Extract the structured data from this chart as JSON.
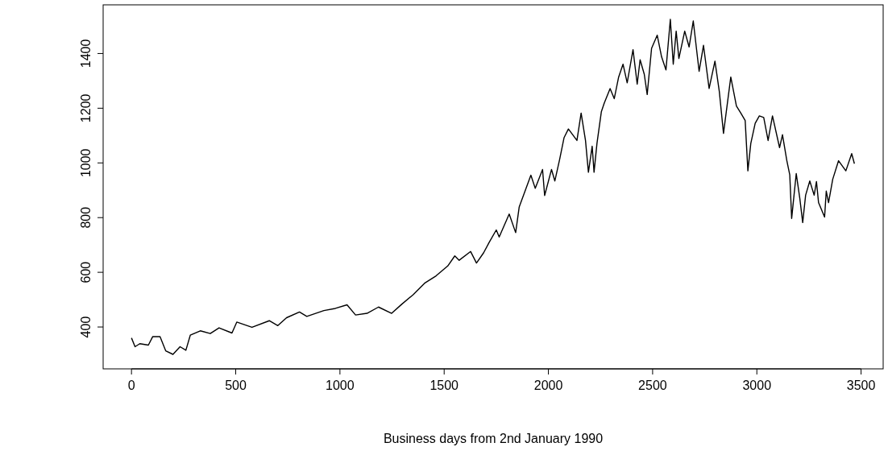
{
  "chart_data": {
    "type": "line",
    "xlabel": "Business days from 2nd January 1990",
    "xlim": [
      -136,
      3606
    ],
    "ylim": [
      247,
      1578
    ],
    "xticks": [
      0,
      500,
      1000,
      1500,
      2000,
      2500,
      3000,
      3500
    ],
    "yticks": [
      400,
      600,
      800,
      1000,
      1200,
      1400
    ],
    "grid": false,
    "marker": "none",
    "line_style": "solid",
    "series": [
      {
        "color": "#000000",
        "x": [
          0,
          17,
          40,
          81,
          102,
          137,
          164,
          199,
          233,
          261,
          282,
          330,
          378,
          420,
          482,
          505,
          578,
          661,
          702,
          744,
          806,
          841,
          923,
          978,
          1034,
          1075,
          1130,
          1185,
          1248,
          1296,
          1351,
          1406,
          1461,
          1517,
          1551,
          1572,
          1627,
          1655,
          1689,
          1715,
          1750,
          1764,
          1812,
          1843,
          1860,
          1888,
          1916,
          1937,
          1972,
          1982,
          2015,
          2031,
          2054,
          2075,
          2096,
          2137,
          2157,
          2178,
          2192,
          2210,
          2219,
          2233,
          2254,
          2268,
          2296,
          2316,
          2337,
          2358,
          2378,
          2406,
          2426,
          2440,
          2460,
          2474,
          2495,
          2522,
          2543,
          2564,
          2585,
          2599,
          2613,
          2626,
          2654,
          2675,
          2695,
          2723,
          2744,
          2771,
          2799,
          2820,
          2840,
          2875,
          2902,
          2923,
          2944,
          2957,
          2971,
          2992,
          3012,
          3033,
          3054,
          3075,
          3109,
          3123,
          3144,
          3158,
          3167,
          3189,
          3206,
          3220,
          3234,
          3254,
          3275,
          3286,
          3296,
          3325,
          3333,
          3344,
          3364,
          3392,
          3427,
          3455,
          3468
        ],
        "values": [
          360,
          328,
          339,
          334,
          365,
          365,
          313,
          300,
          328,
          315,
          370,
          386,
          376,
          397,
          378,
          418,
          399,
          423,
          405,
          434,
          455,
          439,
          460,
          468,
          481,
          444,
          450,
          473,
          450,
          483,
          518,
          560,
          587,
          623,
          660,
          644,
          676,
          634,
          671,
          708,
          755,
          729,
          813,
          745,
          839,
          897,
          955,
          907,
          976,
          881,
          976,
          934,
          1013,
          1092,
          1124,
          1082,
          1182,
          1082,
          966,
          1061,
          966,
          1071,
          1187,
          1219,
          1272,
          1235,
          1314,
          1361,
          1293,
          1414,
          1288,
          1377,
          1324,
          1250,
          1419,
          1467,
          1388,
          1340,
          1525,
          1361,
          1482,
          1382,
          1482,
          1424,
          1519,
          1335,
          1430,
          1272,
          1372,
          1261,
          1108,
          1314,
          1208,
          1182,
          1155,
          971,
          1071,
          1145,
          1172,
          1166,
          1082,
          1172,
          1056,
          1103,
          1008,
          956,
          797,
          961,
          871,
          782,
          882,
          934,
          882,
          932,
          855,
          802,
          897,
          855,
          940,
          1008,
          971,
          1034,
          997
        ]
      }
    ]
  }
}
